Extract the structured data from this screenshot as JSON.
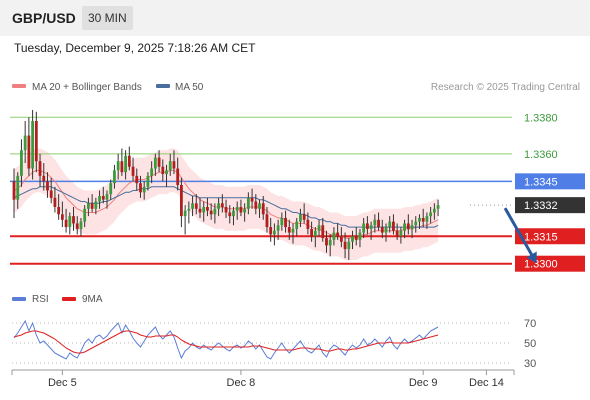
{
  "header": {
    "symbol": "GBP/USD",
    "timeframe": "30 MIN",
    "timestamp": "Tuesday, December 9, 2025 7:18:26 AM CET"
  },
  "credit": "Research © 2025 Trading Central",
  "colors": {
    "up": "#3c9a3c",
    "down": "#b01e1e",
    "wick": "#333333",
    "bollinger_fill": "#fde3e3",
    "ma20": "#f08080",
    "ma50": "#4a6f9e",
    "resistance": "#8ccf6c",
    "pivot": "#4f7fe6",
    "support": "#e02020",
    "current": "#333333",
    "rsi": "#5b7fd6",
    "rsi_ma": "#e02020",
    "arrow": "#2a5a9e"
  },
  "chart_data": [
    {
      "type": "candlestick",
      "legend": [
        {
          "label": "MA 20 + Bollinger Bands",
          "color": "#f08080"
        },
        {
          "label": "MA 50",
          "color": "#4a6f9e"
        }
      ],
      "ylim": [
        1.329,
        1.339
      ],
      "x_ticks": [
        {
          "label": "Dec 5",
          "index": 13
        },
        {
          "label": "Dec 8",
          "index": 61
        },
        {
          "label": "Dec 9",
          "index": 110
        },
        {
          "label": "Dec 14",
          "index": 127
        }
      ],
      "levels": [
        {
          "label": "1.3380",
          "value": 1.338,
          "kind": "resistance"
        },
        {
          "label": "1.3360",
          "value": 1.336,
          "kind": "resistance"
        },
        {
          "label": "1.3345",
          "value": 1.3345,
          "kind": "pivot"
        },
        {
          "label": "1.3332",
          "value": 1.3332,
          "kind": "current"
        },
        {
          "label": "1.3315",
          "value": 1.3315,
          "kind": "support"
        },
        {
          "label": "1.3300",
          "value": 1.33,
          "kind": "support"
        }
      ],
      "forecast_arrow": {
        "from": [
          132,
          1.3332
        ],
        "to": [
          141,
          1.33
        ]
      },
      "candles": [
        [
          1.3345,
          1.3352,
          1.3325,
          1.3335
        ],
        [
          1.3335,
          1.335,
          1.333,
          1.3348
        ],
        [
          1.3348,
          1.3368,
          1.3342,
          1.3362
        ],
        [
          1.3362,
          1.3378,
          1.3355,
          1.337
        ],
        [
          1.337,
          1.338,
          1.3348,
          1.3352
        ],
        [
          1.3352,
          1.3384,
          1.3346,
          1.3378
        ],
        [
          1.3378,
          1.3383,
          1.335,
          1.3356
        ],
        [
          1.3356,
          1.336,
          1.3342,
          1.3348
        ],
        [
          1.3348,
          1.3355,
          1.334,
          1.3345
        ],
        [
          1.3345,
          1.335,
          1.3336,
          1.334
        ],
        [
          1.334,
          1.3347,
          1.3333,
          1.3336
        ],
        [
          1.3336,
          1.3342,
          1.3328,
          1.3331
        ],
        [
          1.3331,
          1.3338,
          1.3324,
          1.3327
        ],
        [
          1.3327,
          1.3334,
          1.332,
          1.3324
        ],
        [
          1.3324,
          1.333,
          1.3317,
          1.332
        ],
        [
          1.332,
          1.3328,
          1.3316,
          1.3326
        ],
        [
          1.3326,
          1.3331,
          1.3318,
          1.3322
        ],
        [
          1.3322,
          1.3326,
          1.3316,
          1.3319
        ],
        [
          1.3319,
          1.3325,
          1.3315,
          1.3323
        ],
        [
          1.3323,
          1.3332,
          1.332,
          1.333
        ],
        [
          1.333,
          1.3336,
          1.3326,
          1.3333
        ],
        [
          1.3333,
          1.3338,
          1.3328,
          1.333
        ],
        [
          1.333,
          1.3336,
          1.3327,
          1.3334
        ],
        [
          1.3334,
          1.334,
          1.333,
          1.3337
        ],
        [
          1.3337,
          1.3342,
          1.3333,
          1.3335
        ],
        [
          1.3335,
          1.334,
          1.333,
          1.3338
        ],
        [
          1.3338,
          1.3346,
          1.3335,
          1.3344
        ],
        [
          1.3344,
          1.3354,
          1.3341,
          1.3351
        ],
        [
          1.3351,
          1.336,
          1.3346,
          1.3356
        ],
        [
          1.3356,
          1.3363,
          1.3348,
          1.335
        ],
        [
          1.335,
          1.3362,
          1.3346,
          1.3359
        ],
        [
          1.3359,
          1.3364,
          1.3351,
          1.3353
        ],
        [
          1.3353,
          1.3358,
          1.3345,
          1.3348
        ],
        [
          1.3348,
          1.3352,
          1.334,
          1.3344
        ],
        [
          1.3344,
          1.3348,
          1.3336,
          1.3339
        ],
        [
          1.3339,
          1.3345,
          1.3335,
          1.3342
        ],
        [
          1.3342,
          1.335,
          1.334,
          1.3348
        ],
        [
          1.3348,
          1.3356,
          1.3344,
          1.3352
        ],
        [
          1.3352,
          1.336,
          1.3348,
          1.3358
        ],
        [
          1.3358,
          1.3362,
          1.335,
          1.3353
        ],
        [
          1.3353,
          1.3357,
          1.3345,
          1.3349
        ],
        [
          1.3349,
          1.3354,
          1.3342,
          1.3351
        ],
        [
          1.3351,
          1.336,
          1.3348,
          1.3356
        ],
        [
          1.3356,
          1.3362,
          1.3349,
          1.3352
        ],
        [
          1.3352,
          1.3358,
          1.334,
          1.3343
        ],
        [
          1.3343,
          1.3347,
          1.332,
          1.3326
        ],
        [
          1.3326,
          1.3332,
          1.3316,
          1.3329
        ],
        [
          1.3329,
          1.3334,
          1.3322,
          1.333
        ],
        [
          1.333,
          1.3337,
          1.3326,
          1.3333
        ],
        [
          1.3333,
          1.3338,
          1.3327,
          1.333
        ],
        [
          1.333,
          1.3336,
          1.3325,
          1.3328
        ],
        [
          1.3328,
          1.3334,
          1.3323,
          1.3331
        ],
        [
          1.3331,
          1.3336,
          1.3326,
          1.3329
        ],
        [
          1.3329,
          1.3333,
          1.3324,
          1.3327
        ],
        [
          1.3327,
          1.3333,
          1.3322,
          1.333
        ],
        [
          1.333,
          1.3336,
          1.3326,
          1.3333
        ],
        [
          1.3333,
          1.3338,
          1.3328,
          1.3331
        ],
        [
          1.3331,
          1.3335,
          1.3325,
          1.3328
        ],
        [
          1.3328,
          1.3332,
          1.3322,
          1.3326
        ],
        [
          1.3326,
          1.3331,
          1.3321,
          1.3329
        ],
        [
          1.3329,
          1.3334,
          1.3324,
          1.3331
        ],
        [
          1.3331,
          1.3335,
          1.3326,
          1.3328
        ],
        [
          1.3328,
          1.3333,
          1.3323,
          1.333
        ],
        [
          1.333,
          1.3339,
          1.3327,
          1.3336
        ],
        [
          1.3336,
          1.3341,
          1.333,
          1.3334
        ],
        [
          1.3334,
          1.3338,
          1.3327,
          1.333
        ],
        [
          1.333,
          1.3335,
          1.3325,
          1.3333
        ],
        [
          1.3333,
          1.3337,
          1.3324,
          1.3327
        ],
        [
          1.3327,
          1.3331,
          1.3317,
          1.332
        ],
        [
          1.332,
          1.3325,
          1.3312,
          1.3316
        ],
        [
          1.3316,
          1.3322,
          1.331,
          1.3318
        ],
        [
          1.3318,
          1.3324,
          1.3313,
          1.3321
        ],
        [
          1.3321,
          1.3328,
          1.3318,
          1.3325
        ],
        [
          1.3325,
          1.3329,
          1.3317,
          1.332
        ],
        [
          1.332,
          1.3324,
          1.3313,
          1.3317
        ],
        [
          1.3317,
          1.3322,
          1.3311,
          1.3319
        ],
        [
          1.3319,
          1.3325,
          1.3315,
          1.3323
        ],
        [
          1.3323,
          1.333,
          1.332,
          1.3327
        ],
        [
          1.3327,
          1.3333,
          1.3322,
          1.3324
        ],
        [
          1.3324,
          1.3328,
          1.3316,
          1.3319
        ],
        [
          1.3319,
          1.3323,
          1.3312,
          1.3315
        ],
        [
          1.3315,
          1.332,
          1.3309,
          1.3318
        ],
        [
          1.3318,
          1.3324,
          1.3315,
          1.3321
        ],
        [
          1.3321,
          1.3325,
          1.3312,
          1.3314
        ],
        [
          1.3314,
          1.3318,
          1.3306,
          1.331
        ],
        [
          1.331,
          1.3316,
          1.3304,
          1.3313
        ],
        [
          1.3313,
          1.332,
          1.331,
          1.3317
        ],
        [
          1.3317,
          1.3322,
          1.3313,
          1.3315
        ],
        [
          1.3315,
          1.332,
          1.3309,
          1.3312
        ],
        [
          1.3312,
          1.3317,
          1.3303,
          1.3308
        ],
        [
          1.3308,
          1.3314,
          1.3302,
          1.3312
        ],
        [
          1.3312,
          1.3318,
          1.3308,
          1.3315
        ],
        [
          1.3315,
          1.332,
          1.331,
          1.3313
        ],
        [
          1.3313,
          1.3319,
          1.3309,
          1.3317
        ],
        [
          1.3317,
          1.3325,
          1.3314,
          1.3322
        ],
        [
          1.3322,
          1.3326,
          1.3316,
          1.3319
        ],
        [
          1.3319,
          1.3323,
          1.3313,
          1.3321
        ],
        [
          1.3321,
          1.3327,
          1.3317,
          1.3324
        ],
        [
          1.3324,
          1.3328,
          1.3318,
          1.332
        ],
        [
          1.332,
          1.3324,
          1.3314,
          1.3317
        ],
        [
          1.3317,
          1.3322,
          1.3312,
          1.332
        ],
        [
          1.332,
          1.3326,
          1.3317,
          1.3323
        ],
        [
          1.3323,
          1.3327,
          1.3316,
          1.3318
        ],
        [
          1.3318,
          1.3322,
          1.3313,
          1.3315
        ],
        [
          1.3315,
          1.332,
          1.3311,
          1.3318
        ],
        [
          1.3318,
          1.3324,
          1.3314,
          1.3322
        ],
        [
          1.3322,
          1.3327,
          1.3316,
          1.3319
        ],
        [
          1.3319,
          1.3324,
          1.3314,
          1.3321
        ],
        [
          1.3321,
          1.3326,
          1.3317,
          1.3323
        ],
        [
          1.3323,
          1.3327,
          1.3319,
          1.3325
        ],
        [
          1.3325,
          1.333,
          1.332,
          1.3323
        ],
        [
          1.3323,
          1.3328,
          1.3319,
          1.3326
        ],
        [
          1.3326,
          1.3331,
          1.3322,
          1.3328
        ],
        [
          1.3328,
          1.3333,
          1.3324,
          1.333
        ],
        [
          1.333,
          1.3335,
          1.3326,
          1.3332
        ]
      ],
      "ma20": [
        1.334,
        1.3341,
        1.3343,
        1.3346,
        1.3348,
        1.335,
        1.3351,
        1.3351,
        1.335,
        1.3349,
        1.3347,
        1.3345,
        1.3342,
        1.3339,
        1.3336,
        1.3334,
        1.3332,
        1.333,
        1.3329,
        1.3328,
        1.3328,
        1.3328,
        1.3328,
        1.3329,
        1.333,
        1.3331,
        1.3333,
        1.3335,
        1.3338,
        1.334,
        1.3342,
        1.3344,
        1.3345,
        1.3346,
        1.3346,
        1.3346,
        1.3347,
        1.3348,
        1.3349,
        1.335,
        1.335,
        1.335,
        1.3351,
        1.3351,
        1.335,
        1.3347,
        1.3344,
        1.3341,
        1.3339,
        1.3337,
        1.3335,
        1.3334,
        1.3333,
        1.3332,
        1.3331,
        1.3331,
        1.3331,
        1.333,
        1.333,
        1.333,
        1.333,
        1.333,
        1.333,
        1.3331,
        1.3331,
        1.3331,
        1.3331,
        1.333,
        1.3329,
        1.3327,
        1.3326,
        1.3325,
        1.3325,
        1.3324,
        1.3323,
        1.3322,
        1.3322,
        1.3322,
        1.3322,
        1.3321,
        1.332,
        1.3319,
        1.3319,
        1.3318,
        1.3317,
        1.3316,
        1.3316,
        1.3316,
        1.3315,
        1.3314,
        1.3314,
        1.3314,
        1.3314,
        1.3315,
        1.3316,
        1.3316,
        1.3317,
        1.3318,
        1.3318,
        1.3318,
        1.3318,
        1.3318,
        1.3318,
        1.3318,
        1.3318,
        1.3319,
        1.3319,
        1.3319,
        1.332,
        1.332,
        1.3321,
        1.3321,
        1.3322,
        1.3323,
        1.3324
      ],
      "ma50": [
        1.3336,
        1.3337,
        1.3338,
        1.3339,
        1.334,
        1.3341,
        1.3341,
        1.3342,
        1.3342,
        1.3342,
        1.3342,
        1.3341,
        1.334,
        1.3339,
        1.3338,
        1.3337,
        1.3336,
        1.3335,
        1.3334,
        1.3334,
        1.3333,
        1.3333,
        1.3333,
        1.3333,
        1.3334,
        1.3334,
        1.3335,
        1.3336,
        1.3337,
        1.3338,
        1.3339,
        1.3339,
        1.334,
        1.334,
        1.3341,
        1.3341,
        1.3341,
        1.3342,
        1.3342,
        1.3342,
        1.3342,
        1.3342,
        1.3342,
        1.3342,
        1.3341,
        1.334,
        1.3339,
        1.3338,
        1.3337,
        1.3337,
        1.3336,
        1.3336,
        1.3336,
        1.3336,
        1.3336,
        1.3336,
        1.3336,
        1.3336,
        1.3336,
        1.3336,
        1.3336,
        1.3336,
        1.3336,
        1.3336,
        1.3336,
        1.3336,
        1.3335,
        1.3335,
        1.3334,
        1.3333,
        1.3332,
        1.3331,
        1.333,
        1.333,
        1.3329,
        1.3328,
        1.3328,
        1.3327,
        1.3327,
        1.3326,
        1.3325,
        1.3325,
        1.3324,
        1.3324,
        1.3323,
        1.3323,
        1.3322,
        1.3322,
        1.3321,
        1.3321,
        1.332,
        1.332,
        1.332,
        1.332,
        1.332,
        1.332,
        1.332,
        1.332,
        1.332,
        1.332,
        1.332,
        1.332,
        1.332,
        1.332,
        1.332,
        1.332,
        1.332,
        1.332,
        1.332,
        1.332,
        1.332,
        1.332,
        1.332,
        1.332,
        1.3321
      ],
      "bb_width": 0.0012
    },
    {
      "type": "line",
      "legend": [
        {
          "label": "RSI",
          "color": "#5b7fd6"
        },
        {
          "label": "9MA",
          "color": "#e02020"
        }
      ],
      "ylim": [
        25,
        80
      ],
      "y_ticks": [
        "70",
        "50",
        "30"
      ],
      "y_tick_values": [
        70,
        50,
        30
      ],
      "rsi": [
        55,
        60,
        66,
        72,
        62,
        70,
        58,
        50,
        52,
        48,
        44,
        40,
        38,
        36,
        34,
        40,
        37,
        35,
        42,
        50,
        54,
        50,
        56,
        58,
        54,
        57,
        62,
        66,
        70,
        60,
        68,
        62,
        55,
        50,
        46,
        52,
        58,
        62,
        66,
        58,
        54,
        58,
        62,
        56,
        45,
        35,
        42,
        45,
        50,
        46,
        44,
        48,
        45,
        43,
        47,
        50,
        47,
        44,
        42,
        46,
        48,
        45,
        47,
        52,
        49,
        44,
        48,
        42,
        36,
        34,
        40,
        45,
        50,
        44,
        40,
        44,
        48,
        52,
        46,
        42,
        40,
        44,
        48,
        40,
        36,
        44,
        48,
        46,
        42,
        38,
        44,
        48,
        45,
        48,
        54,
        48,
        50,
        54,
        50,
        46,
        52,
        56,
        48,
        44,
        50,
        54,
        50,
        52,
        55,
        58,
        54,
        58,
        62,
        64,
        66
      ],
      "rsi_ma": [
        56,
        57,
        58,
        60,
        61,
        62,
        62,
        61,
        60,
        58,
        56,
        54,
        51,
        48,
        45,
        43,
        41,
        40,
        40,
        41,
        43,
        45,
        47,
        49,
        51,
        53,
        55,
        57,
        59,
        61,
        62,
        62,
        61,
        60,
        58,
        57,
        56,
        56,
        57,
        57,
        57,
        57,
        58,
        58,
        56,
        53,
        51,
        49,
        48,
        47,
        46,
        46,
        46,
        46,
        46,
        46,
        46,
        46,
        46,
        46,
        46,
        46,
        46,
        46,
        47,
        47,
        47,
        46,
        45,
        44,
        43,
        43,
        43,
        43,
        43,
        43,
        44,
        45,
        45,
        45,
        44,
        44,
        44,
        43,
        42,
        42,
        43,
        44,
        44,
        43,
        43,
        44,
        44,
        45,
        46,
        47,
        48,
        49,
        50,
        50,
        50,
        51,
        50,
        50,
        50,
        50,
        50,
        51,
        52,
        53,
        54,
        55,
        56,
        57,
        58
      ]
    }
  ]
}
